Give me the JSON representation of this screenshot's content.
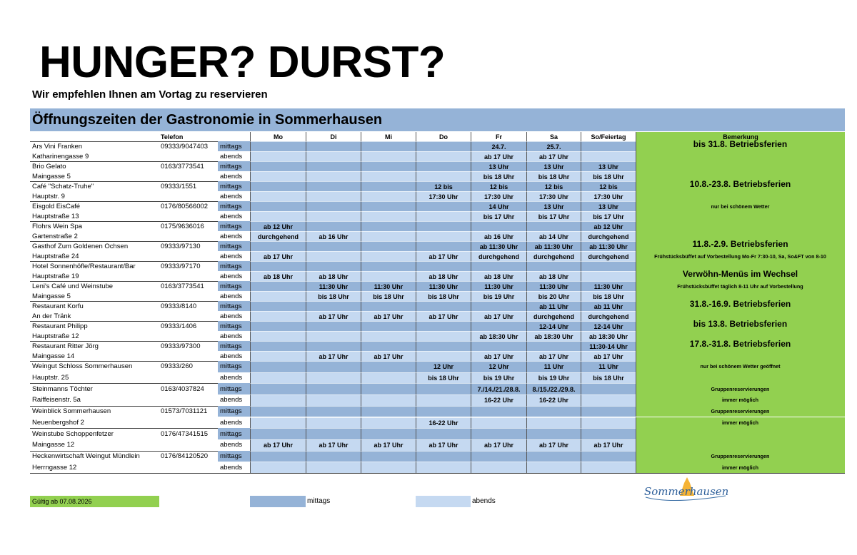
{
  "header": {
    "title": "HUNGER? DURST?",
    "subtitle": "Wir empfehlen Ihnen am Vortag zu reservieren"
  },
  "table": {
    "title": "Öffnungszeiten der Gastronomie in Sommerhausen",
    "columns": {
      "phone": "Telefon",
      "days": [
        "Mo",
        "Di",
        "Mi",
        "Do",
        "Fr",
        "Sa",
        "So/Feiertag"
      ],
      "remark": "Bemerkung"
    },
    "row_types": [
      "mittags",
      "abends"
    ],
    "rows": [
      {
        "name": "Ars Vini Franken",
        "address": "Katharinengasse 9",
        "phone": "09333/9047403",
        "mittags": [
          null,
          null,
          null,
          null,
          "24.7.",
          "25.7.",
          null
        ],
        "abends": [
          null,
          null,
          null,
          null,
          "ab 17 Uhr",
          "ab 17 Uhr",
          null
        ],
        "remark_mittags": "bis 31.8. Betriebsferien"
      },
      {
        "name": "Brio Gelato",
        "address": "Maingasse 5",
        "phone": "0163/3773541",
        "mittags": [
          null,
          null,
          null,
          null,
          "13 Uhr",
          "13 Uhr",
          "13 Uhr"
        ],
        "abends": [
          null,
          null,
          null,
          null,
          "bis 18 Uhr",
          "bis 18 Uhr",
          "bis 18 Uhr"
        ]
      },
      {
        "name": "Café \"Schatz-Truhe\"",
        "address": "Hauptstr. 9",
        "phone": "09333/1551",
        "mittags": [
          null,
          null,
          null,
          "12 bis",
          "12 bis",
          "12 bis",
          "12 bis"
        ],
        "abends": [
          null,
          null,
          null,
          "17:30 Uhr",
          "17:30 Uhr",
          "17:30 Uhr",
          "17:30 Uhr"
        ],
        "remark_mittags": "10.8.-23.8. Betriebsferien"
      },
      {
        "name": "Eisgold EisCafé",
        "address": "Hauptstraße 13",
        "phone": "0176/80566002",
        "mittags": [
          null,
          null,
          null,
          null,
          "14 Uhr",
          "13 Uhr",
          "13 Uhr"
        ],
        "abends": [
          null,
          null,
          null,
          null,
          "bis 17 Uhr",
          "bis 17 Uhr",
          "bis 17 Uhr"
        ],
        "remark_mittags": "nur bei schönem Wetter"
      },
      {
        "name": "Flohrs Wein Spa",
        "address": "Gartenstraße 2",
        "phone": "0175/9636016",
        "mittags": [
          "ab 12 Uhr",
          null,
          null,
          null,
          null,
          null,
          "ab 12 Uhr"
        ],
        "abends": [
          "durchgehend",
          "ab 16 Uhr",
          null,
          null,
          "ab 16 Uhr",
          "ab 14 Uhr",
          "durchgehend"
        ]
      },
      {
        "name": "Gasthof Zum Goldenen Ochsen",
        "address": "Hauptstraße 24",
        "phone": "09333/97130",
        "mittags": [
          null,
          null,
          null,
          null,
          "ab 11:30 Uhr",
          "ab 11:30 Uhr",
          "ab 11:30 Uhr"
        ],
        "abends": [
          "ab 17 Uhr",
          null,
          null,
          "ab 17 Uhr",
          "durchgehend",
          "durchgehend",
          "durchgehend"
        ],
        "remark_mittags": "11.8.-2.9. Betriebsferien",
        "remark_abends": "Frühstücksbüffet auf Vorbestellung Mo-Fr 7:30-10, Sa, So&FT von 8-10"
      },
      {
        "name": "Hotel Sonnenhöfle/Restaurant/Bar",
        "address": "Hauptstraße 19",
        "phone": "09333/97170",
        "mittags": [
          null,
          null,
          null,
          null,
          null,
          null,
          null
        ],
        "abends": [
          "ab 18 Uhr",
          "ab 18 Uhr",
          null,
          "ab 18 Uhr",
          "ab 18 Uhr",
          "ab 18 Uhr",
          null
        ],
        "remark_abends": "Verwöhn-Menüs im Wechsel"
      },
      {
        "name": "Leni's Café und Weinstube",
        "address": "Maingasse 5",
        "phone": "0163/3773541",
        "mittags": [
          null,
          "11:30 Uhr",
          "11:30 Uhr",
          "11:30 Uhr",
          "11:30 Uhr",
          "11:30 Uhr",
          "11:30 Uhr"
        ],
        "abends": [
          null,
          "bis 18 Uhr",
          "bis 18 Uhr",
          "bis 18 Uhr",
          "bis 19 Uhr",
          "bis 20 Uhr",
          "bis 18 Uhr"
        ],
        "remark_mittags": "Frühstücksbüffet täglich 8-11 Uhr auf Vorbestellung"
      },
      {
        "name": "Restaurant Korfu",
        "address": "An der Tränk",
        "phone": "09333/8140",
        "mittags": [
          null,
          null,
          null,
          null,
          null,
          "ab 11 Uhr",
          "ab 11 Uhr"
        ],
        "abends": [
          null,
          "ab 17 Uhr",
          "ab 17 Uhr",
          "ab 17 Uhr",
          "ab 17 Uhr",
          "durchgehend",
          "durchgehend"
        ],
        "remark_mittags": "31.8.-16.9. Betriebsferien"
      },
      {
        "name": "Restaurant Philipp",
        "address": "Hauptstraße 12",
        "phone": "09333/1406",
        "mittags": [
          null,
          null,
          null,
          null,
          null,
          "12-14 Uhr",
          "12-14 Uhr"
        ],
        "abends": [
          null,
          null,
          null,
          null,
          "ab 18:30 Uhr",
          "ab 18:30 Uhr",
          "ab 18:30 Uhr"
        ],
        "remark_mittags": "bis 13.8. Betriebsferien"
      },
      {
        "name": "Restaurant Ritter Jörg",
        "address": "Maingasse 14",
        "phone": "09333/97300",
        "mittags": [
          null,
          null,
          null,
          null,
          null,
          null,
          "11:30-14 Uhr"
        ],
        "abends": [
          null,
          "ab 17 Uhr",
          "ab 17 Uhr",
          null,
          "ab 17 Uhr",
          "ab 17 Uhr",
          "ab 17 Uhr"
        ],
        "remark_mittags": "17.8.-31.8. Betriebsferien"
      },
      {
        "name": "Weingut Schloss Sommerhausen",
        "address": "Hauptstr. 25",
        "phone": "09333/260",
        "mittags": [
          null,
          null,
          null,
          "12 Uhr",
          "12 Uhr",
          "11 Uhr",
          "11 Uhr"
        ],
        "abends": [
          null,
          null,
          null,
          "bis 18 Uhr",
          "bis 19 Uhr",
          "bis 19 Uhr",
          "bis 18 Uhr"
        ],
        "remark_mittags": "nur bei schönem Wetter geöffnet"
      },
      {
        "name": "Steinmanns Töchter",
        "address": "Raiffeisenstr. 5a",
        "phone": "0163/4037824",
        "mittags": [
          null,
          null,
          null,
          null,
          "7./14./21./28.8.",
          "8./15./22./29.8.",
          null
        ],
        "abends": [
          null,
          null,
          null,
          null,
          "16-22 Uhr",
          "16-22 Uhr",
          null
        ],
        "remark_mittags": "Gruppenreservierungen",
        "remark_abends": "immer möglich"
      },
      {
        "name": "Weinblick Sommerhausen",
        "address": "Neuenbergshof 2",
        "phone": "01573/7031121",
        "mittags": [
          null,
          null,
          null,
          null,
          null,
          null,
          null
        ],
        "abends": [
          null,
          null,
          null,
          "16-22 Uhr",
          null,
          null,
          null
        ],
        "remark_mittags": "Gruppenreservierungen",
        "remark_abends": "immer möglich"
      },
      {
        "name": "Weinstube Schoppenfetzer",
        "address": "Maingasse 12",
        "phone": "0176/47341515",
        "mittags": [
          null,
          null,
          null,
          null,
          null,
          null,
          null
        ],
        "abends": [
          "ab 17 Uhr",
          "ab 17 Uhr",
          "ab 17 Uhr",
          "ab 17 Uhr",
          "ab 17 Uhr",
          "ab 17 Uhr",
          "ab 17 Uhr"
        ]
      },
      {
        "name": "Heckenwirtschaft Weingut Mündlein",
        "address": "Herrngasse 12",
        "phone": "0176/84120520",
        "mittags": [
          null,
          null,
          null,
          null,
          null,
          null,
          null
        ],
        "abends": [
          null,
          null,
          null,
          null,
          null,
          null,
          null
        ],
        "remark_mittags": "Gruppenreservierungen",
        "remark_abends": "immer möglich"
      }
    ]
  },
  "footer": {
    "valid": "Gültig ab 07.08.2026"
  },
  "logo": {
    "name": "Sommerhausen"
  }
}
